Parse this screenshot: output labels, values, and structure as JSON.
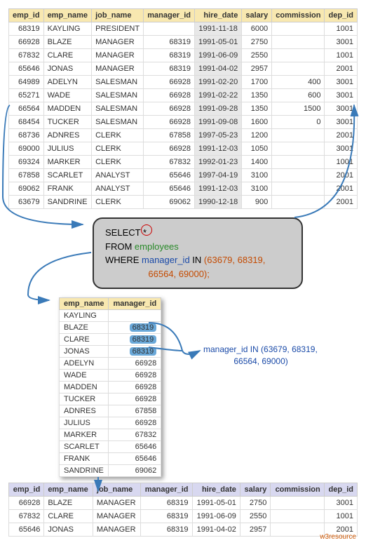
{
  "main_table": {
    "columns": [
      "emp_id",
      "emp_name",
      "job_name",
      "manager_id",
      "hire_date",
      "salary",
      "commission",
      "dep_id"
    ],
    "rows": [
      [
        "68319",
        "KAYLING",
        "PRESIDENT",
        "",
        "1991-11-18",
        "6000",
        "",
        "1001"
      ],
      [
        "66928",
        "BLAZE",
        "MANAGER",
        "68319",
        "1991-05-01",
        "2750",
        "",
        "3001"
      ],
      [
        "67832",
        "CLARE",
        "MANAGER",
        "68319",
        "1991-06-09",
        "2550",
        "",
        "1001"
      ],
      [
        "65646",
        "JONAS",
        "MANAGER",
        "68319",
        "1991-04-02",
        "2957",
        "",
        "2001"
      ],
      [
        "64989",
        "ADELYN",
        "SALESMAN",
        "66928",
        "1991-02-20",
        "1700",
        "400",
        "3001"
      ],
      [
        "65271",
        "WADE",
        "SALESMAN",
        "66928",
        "1991-02-22",
        "1350",
        "600",
        "3001"
      ],
      [
        "66564",
        "MADDEN",
        "SALESMAN",
        "66928",
        "1991-09-28",
        "1350",
        "1500",
        "3001"
      ],
      [
        "68454",
        "TUCKER",
        "SALESMAN",
        "66928",
        "1991-09-08",
        "1600",
        "0",
        "3001"
      ],
      [
        "68736",
        "ADNRES",
        "CLERK",
        "67858",
        "1997-05-23",
        "1200",
        "",
        "2001"
      ],
      [
        "69000",
        "JULIUS",
        "CLERK",
        "66928",
        "1991-12-03",
        "1050",
        "",
        "3001"
      ],
      [
        "69324",
        "MARKER",
        "CLERK",
        "67832",
        "1992-01-23",
        "1400",
        "",
        "1001"
      ],
      [
        "67858",
        "SCARLET",
        "ANALYST",
        "65646",
        "1997-04-19",
        "3100",
        "",
        "2001"
      ],
      [
        "69062",
        "FRANK",
        "ANALYST",
        "65646",
        "1991-12-03",
        "3100",
        "",
        "2001"
      ],
      [
        "63679",
        "SANDRINE",
        "CLERK",
        "69062",
        "1990-12-18",
        "900",
        "",
        "2001"
      ]
    ]
  },
  "sql": {
    "select": "SELECT",
    "star": "*",
    "from": "FROM",
    "table": "employees",
    "where": "WHERE",
    "col": "manager_id",
    "in": "IN",
    "vals1": "(63679,  68319,",
    "vals2": "66564, 69000);"
  },
  "small_table": {
    "columns": [
      "emp_name",
      "manager_id"
    ],
    "rows": [
      [
        "KAYLING",
        ""
      ],
      [
        "BLAZE",
        "68319"
      ],
      [
        "CLARE",
        "68319"
      ],
      [
        "JONAS",
        "68319"
      ],
      [
        "ADELYN",
        "66928"
      ],
      [
        "WADE",
        "66928"
      ],
      [
        "MADDEN",
        "66928"
      ],
      [
        "TUCKER",
        "66928"
      ],
      [
        "ADNRES",
        "67858"
      ],
      [
        "JULIUS",
        "66928"
      ],
      [
        "MARKER",
        "67832"
      ],
      [
        "SCARLET",
        "65646"
      ],
      [
        "FRANK",
        "65646"
      ],
      [
        "SANDRINE",
        "69062"
      ]
    ],
    "highlight_rows": [
      1,
      2,
      3
    ]
  },
  "annotation": {
    "line1": "manager_id IN (63679,  68319,",
    "line2": "66564, 69000)"
  },
  "result_table": {
    "columns": [
      "emp_id",
      "emp_name",
      "job_name",
      "manager_id",
      "hire_date",
      "salary",
      "commission",
      "dep_id"
    ],
    "rows": [
      [
        "66928",
        "BLAZE",
        "MANAGER",
        "68319",
        "1991-05-01",
        "2750",
        "",
        "3001"
      ],
      [
        "67832",
        "CLARE",
        "MANAGER",
        "68319",
        "1991-06-09",
        "2550",
        "",
        "1001"
      ],
      [
        "65646",
        "JONAS",
        "MANAGER",
        "68319",
        "1991-04-02",
        "2957",
        "",
        "2001"
      ]
    ]
  },
  "watermark": "w3resource",
  "colors": {
    "header_yellow": "#f8e8b0",
    "header_blue": "#d8d8f0",
    "date_bg": "#e8e8e8",
    "sql_bg": "#cccccc",
    "arrow": "#3a7ab8",
    "highlight": "#6aa8d8"
  }
}
